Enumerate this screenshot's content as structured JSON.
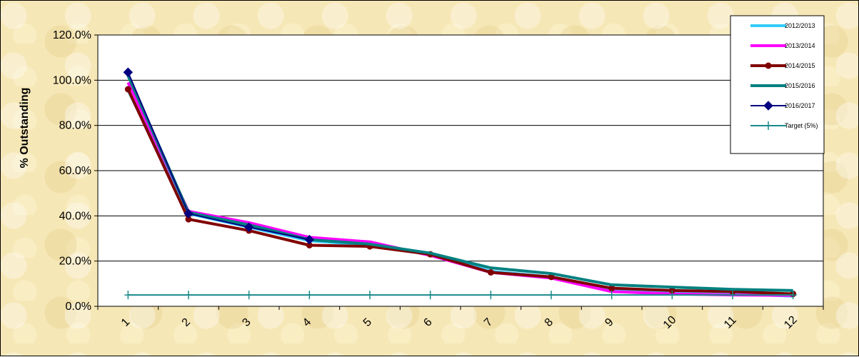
{
  "chart_data": {
    "type": "line",
    "title": "",
    "xlabel": "",
    "ylabel": "% Outstanding",
    "x": [
      1,
      2,
      3,
      4,
      5,
      6,
      7,
      8,
      9,
      10,
      11,
      12
    ],
    "x_tick_labels": [
      "1",
      "2",
      "3",
      "4",
      "5",
      "6",
      "7",
      "8",
      "9",
      "10",
      "11",
      "12"
    ],
    "ylim": [
      0,
      120
    ],
    "y_ticks": [
      0,
      20,
      40,
      60,
      80,
      100,
      120
    ],
    "y_tick_labels": [
      "0.0%",
      "20.0%",
      "40.0%",
      "60.0%",
      "80.0%",
      "100.0%",
      "120.0%"
    ],
    "grid": "horizontal",
    "legend_position": "right",
    "series": [
      {
        "name": "2012/2013",
        "color": "#33ccff",
        "marker": "none",
        "values": [
          95.5,
          41.0,
          35.0,
          29.0,
          27.0,
          23.0,
          15.5,
          13.0,
          7.0,
          6.0,
          5.5,
          4.5
        ]
      },
      {
        "name": "2013/2014",
        "color": "#ff00ff",
        "marker": "none",
        "values": [
          99.0,
          42.0,
          37.0,
          30.5,
          28.5,
          22.5,
          15.0,
          12.5,
          6.5,
          5.5,
          5.0,
          4.8
        ]
      },
      {
        "name": "2014/2015",
        "color": "#800000",
        "marker": "circle",
        "values": [
          96.0,
          38.5,
          33.5,
          27.0,
          26.5,
          23.0,
          15.0,
          13.0,
          8.0,
          7.0,
          6.5,
          5.5
        ]
      },
      {
        "name": "2015/2016",
        "color": "#008080",
        "marker": "none",
        "values": [
          102.0,
          41.5,
          36.0,
          29.5,
          27.5,
          23.5,
          17.0,
          14.5,
          9.5,
          8.5,
          7.5,
          7.0
        ]
      },
      {
        "name": "2016/2017",
        "color": "#000080",
        "marker": "diamond",
        "values": [
          103.5,
          41.0,
          35.0,
          29.5,
          null,
          null,
          null,
          null,
          null,
          null,
          null,
          null
        ]
      },
      {
        "name": "Target (5%)",
        "color": "#1a8a8a",
        "marker": "plus",
        "values": [
          5,
          5,
          5,
          5,
          5,
          5,
          5,
          5,
          5,
          5,
          5,
          5
        ]
      }
    ]
  }
}
